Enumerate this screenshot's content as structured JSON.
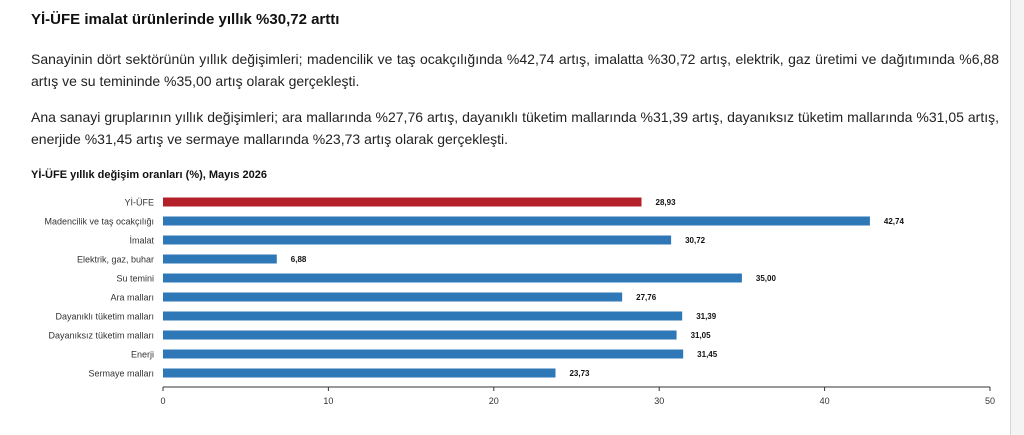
{
  "headline": "Yİ-ÜFE imalat ürünlerinde yıllık %30,72 arttı",
  "paragraphs": [
    "Sanayinin dört sektörünün yıllık değişimleri; madencilik ve taş ocakçılığında %42,74 artış, imalatta %30,72 artış, elektrik, gaz üretimi ve dağıtımında %6,88 artış ve su temininde %35,00 artış olarak gerçekleşti.",
    "Ana sanayi gruplarının yıllık değişimleri; ara mallarında %27,76 artış, dayanıklı tüketim mallarında %31,39 artış, dayanıksız tüketim mallarında %31,05 artış, enerjide %31,45 artış ve sermaye mallarında %23,73 artış olarak gerçekleşti."
  ],
  "chart_data": {
    "type": "bar",
    "orientation": "horizontal",
    "title": "Yİ-ÜFE yıllık değişim oranları (%), Mayıs 2026",
    "categories": [
      "Yİ-ÜFE",
      "Madencilik ve taş ocakçılığı",
      "İmalat",
      "Elektrik, gaz, buhar",
      "Su temini",
      "Ara malları",
      "Dayanıklı tüketim malları",
      "Dayanıksız tüketim malları",
      "Enerji",
      "Sermaye malları"
    ],
    "values": [
      28.93,
      42.74,
      30.72,
      6.88,
      35.0,
      27.76,
      31.39,
      31.05,
      31.45,
      23.73
    ],
    "value_labels": [
      "28,93",
      "42,74",
      "30,72",
      "6,88",
      "35,00",
      "27,76",
      "31,39",
      "31,05",
      "31,45",
      "23,73"
    ],
    "xlim": [
      0,
      50
    ],
    "xticks": [
      0,
      10,
      20,
      30,
      40,
      50
    ],
    "grid": false,
    "legend": "none",
    "colors": {
      "highlight": "#b3202a",
      "bar": "#2f78b7",
      "axis": "#333333"
    }
  }
}
